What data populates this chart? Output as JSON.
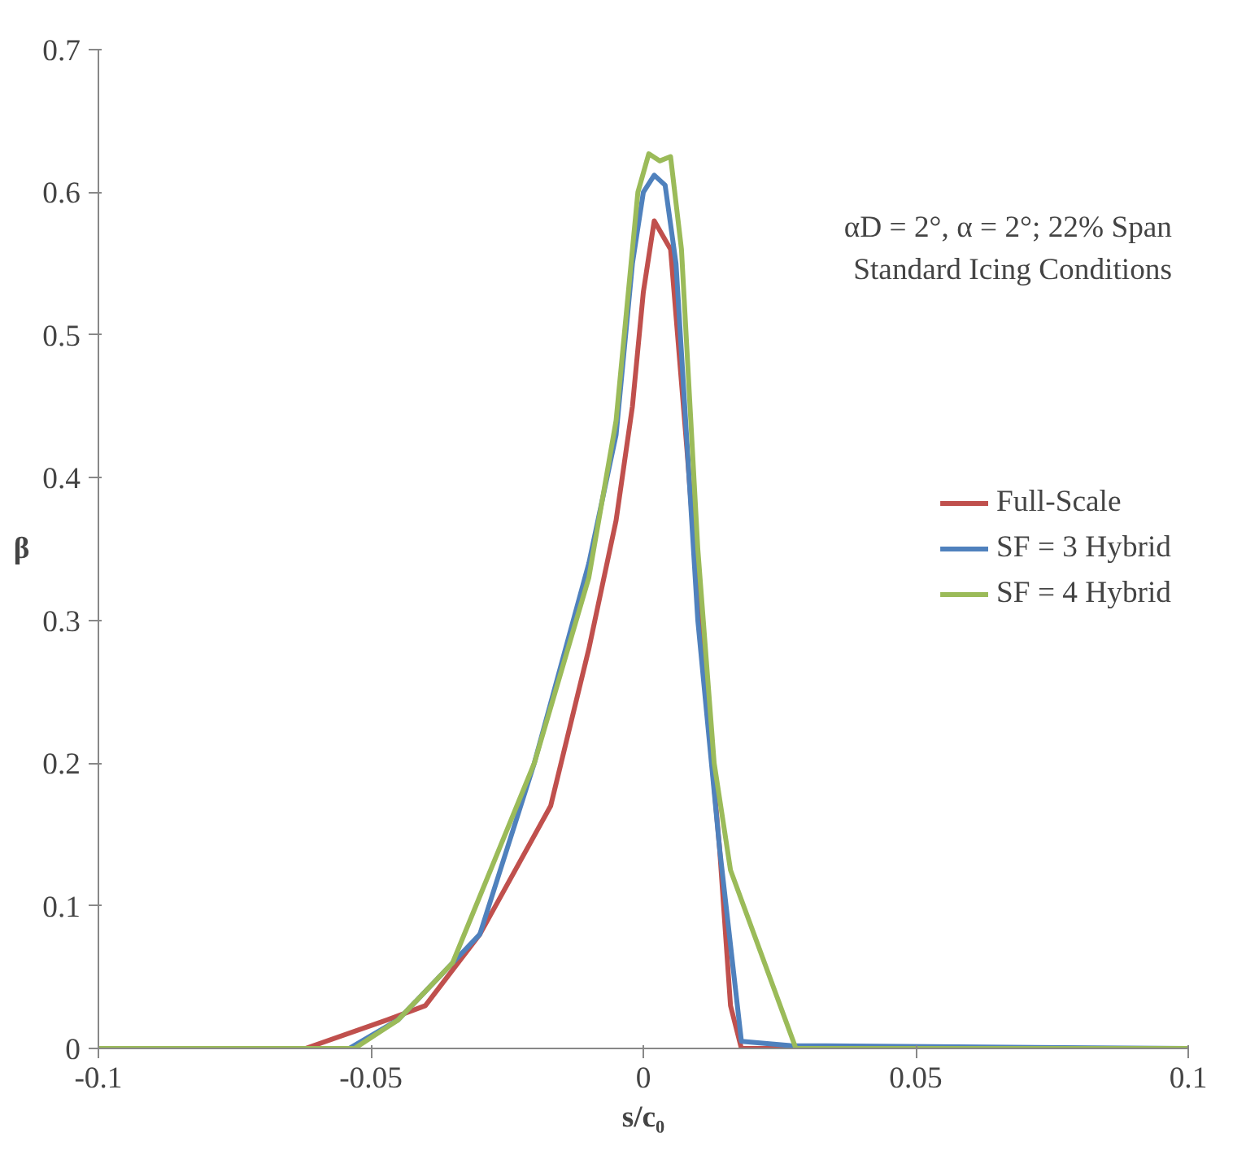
{
  "chart_data": {
    "type": "line",
    "xlabel": "s/c₀",
    "ylabel": "β",
    "xlim": [
      -0.1,
      0.1
    ],
    "ylim": [
      0,
      0.7
    ],
    "xticks": [
      -0.1,
      -0.05,
      0,
      0.05,
      0.1
    ],
    "yticks": [
      0,
      0.1,
      0.2,
      0.3,
      0.4,
      0.5,
      0.6,
      0.7
    ],
    "grid": false,
    "legend": "right",
    "marker": "none",
    "line_style": "solid",
    "annotations": [
      "αD = 2°, α = 2°; 22% Span",
      "Standard Icing Conditions"
    ],
    "series": [
      {
        "name": "Full-Scale",
        "color": "#c0504d",
        "x": [
          -0.1,
          -0.062,
          -0.047,
          -0.04,
          -0.03,
          -0.017,
          -0.01,
          -0.005,
          -0.002,
          0,
          0.002,
          0.005,
          0.008,
          0.011,
          0.014,
          0.016,
          0.018,
          0.1
        ],
        "values": [
          0,
          0,
          0.02,
          0.03,
          0.08,
          0.17,
          0.28,
          0.37,
          0.45,
          0.53,
          0.58,
          0.56,
          0.42,
          0.27,
          0.14,
          0.03,
          0,
          0
        ]
      },
      {
        "name": "SF = 3 Hybrid",
        "color": "#4f81bd",
        "x": [
          -0.1,
          -0.054,
          -0.045,
          -0.035,
          -0.03,
          -0.02,
          -0.01,
          -0.005,
          -0.002,
          0,
          0.002,
          0.004,
          0.006,
          0.01,
          0.014,
          0.018,
          0.027,
          0.1
        ],
        "values": [
          0,
          0,
          0.02,
          0.06,
          0.08,
          0.2,
          0.34,
          0.43,
          0.55,
          0.6,
          0.612,
          0.605,
          0.55,
          0.3,
          0.14,
          0.005,
          0.002,
          0
        ]
      },
      {
        "name": "SF = 4 Hybrid",
        "color": "#9bbb59",
        "x": [
          -0.1,
          -0.053,
          -0.045,
          -0.035,
          -0.02,
          -0.01,
          -0.005,
          -0.003,
          -0.001,
          0.001,
          0.003,
          0.005,
          0.007,
          0.01,
          0.013,
          0.016,
          0.028,
          0.1
        ],
        "values": [
          0,
          0,
          0.02,
          0.06,
          0.2,
          0.33,
          0.44,
          0.52,
          0.6,
          0.627,
          0.622,
          0.625,
          0.56,
          0.35,
          0.2,
          0.125,
          0,
          0
        ]
      }
    ]
  }
}
